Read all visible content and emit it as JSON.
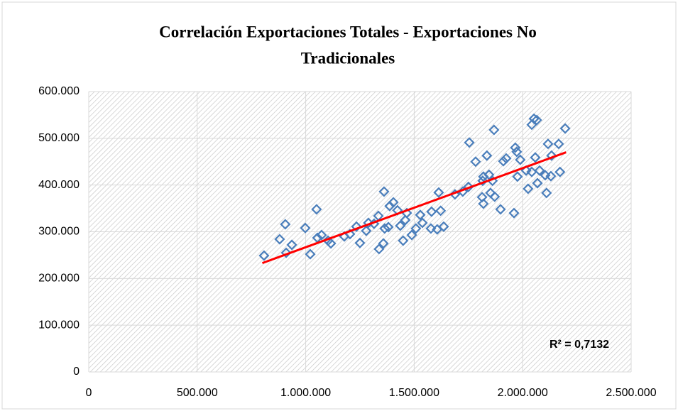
{
  "chart_data": {
    "type": "scatter",
    "title": [
      "Correlación Exportaciones Totales - Exportaciones No",
      "Tradicionales"
    ],
    "x": [
      808000,
      880000,
      906000,
      910000,
      936000,
      998000,
      1021000,
      1050000,
      1054000,
      1073000,
      1103000,
      1116000,
      1178000,
      1204000,
      1234000,
      1250000,
      1279000,
      1289000,
      1315000,
      1335000,
      1338000,
      1358000,
      1361000,
      1364000,
      1381000,
      1387000,
      1404000,
      1423000,
      1436000,
      1449000,
      1459000,
      1466000,
      1489000,
      1508000,
      1528000,
      1538000,
      1577000,
      1580000,
      1606000,
      1613000,
      1622000,
      1636000,
      1688000,
      1724000,
      1750000,
      1754000,
      1783000,
      1816000,
      1819000,
      1813000,
      1819000,
      1835000,
      1845000,
      1852000,
      1861000,
      1868000,
      1871000,
      1898000,
      1911000,
      1924000,
      1960000,
      1966000,
      1973000,
      1976000,
      1989000,
      2016000,
      2025000,
      2042000,
      2042000,
      2052000,
      2065000,
      2058000,
      2068000,
      2078000,
      2104000,
      2110000,
      2117000,
      2130000,
      2133000,
      2166000,
      2172000,
      2196000
    ],
    "values": [
      249000,
      284000,
      316000,
      255000,
      272000,
      308000,
      252000,
      348000,
      287000,
      293000,
      281000,
      275000,
      290000,
      295000,
      311000,
      276000,
      302000,
      319000,
      317000,
      334000,
      263000,
      275000,
      386000,
      307000,
      310000,
      355000,
      363000,
      346000,
      313000,
      281000,
      325000,
      340000,
      293000,
      307000,
      336000,
      319000,
      307000,
      343000,
      305000,
      384000,
      345000,
      311000,
      380000,
      386000,
      396000,
      491000,
      450000,
      409000,
      418000,
      374000,
      360000,
      463000,
      422000,
      383000,
      409000,
      518000,
      375000,
      348000,
      451000,
      457000,
      340000,
      480000,
      471000,
      418000,
      454000,
      431000,
      392000,
      428000,
      529000,
      542000,
      539000,
      459000,
      404000,
      431000,
      421000,
      383000,
      488000,
      419000,
      463000,
      488000,
      428000,
      521000
    ],
    "color": "#4a7ebb",
    "trendline": {
      "x": [
        800000,
        2200000
      ],
      "values": [
        233000,
        470000
      ],
      "color": "#ff0000"
    },
    "annotation": "R² = 0,7132",
    "xlim": [
      0,
      2500000
    ],
    "xticks": [
      0,
      {
        "value": 500000,
        "label": "500.000"
      },
      {
        "value": 1000000,
        "label": "1.000.000"
      },
      {
        "value": 1500000,
        "label": "1.500.000"
      },
      {
        "value": 2000000,
        "label": "2.000.000"
      },
      {
        "value": 2500000,
        "label": "2.500.000"
      }
    ],
    "ylim": [
      0,
      600000
    ],
    "yticks": [
      0,
      {
        "value": 100000,
        "label": "100.000"
      },
      {
        "value": 200000,
        "label": "200.000"
      },
      {
        "value": 300000,
        "label": "300.000"
      },
      {
        "value": 400000,
        "label": "400.000"
      },
      {
        "value": 500000,
        "label": "500.000"
      },
      {
        "value": 600000,
        "label": "600.000"
      }
    ],
    "grid": true
  }
}
